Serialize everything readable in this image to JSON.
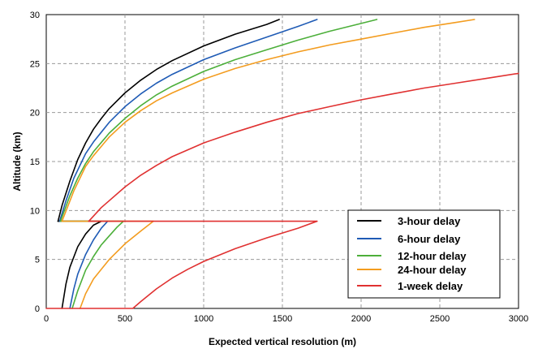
{
  "chart_data": {
    "type": "line",
    "title": "",
    "xlabel": "Expected vertical resolution (m)",
    "ylabel": "Altitude (km)",
    "xlim": [
      0,
      3000
    ],
    "ylim": [
      0,
      30
    ],
    "xticks": [
      0,
      500,
      1000,
      1500,
      2000,
      2500,
      3000
    ],
    "yticks": [
      0,
      5,
      10,
      15,
      20,
      25,
      30
    ],
    "grid": true,
    "legend_position": "bottom-right",
    "series": [
      {
        "name": "3-hour delay",
        "color": "#000000",
        "x": [
          75,
          100,
          150,
          200,
          250,
          300,
          350,
          400,
          500,
          600,
          700,
          800,
          1000,
          1200,
          1400,
          1480
        ],
        "y": [
          8.9,
          10.5,
          13.0,
          15.2,
          16.9,
          18.3,
          19.4,
          20.4,
          22.0,
          23.3,
          24.4,
          25.3,
          26.8,
          28.0,
          29.0,
          29.5
        ],
        "x_lower": [
          100,
          125,
          150,
          200,
          250,
          300,
          350
        ],
        "y_lower": [
          0,
          2.5,
          4.2,
          6.3,
          7.6,
          8.5,
          8.9
        ]
      },
      {
        "name": "6-hour delay",
        "color": "#1f5bb5",
        "x": [
          85,
          125,
          175,
          250,
          300,
          400,
          500,
          600,
          700,
          800,
          1000,
          1200,
          1400,
          1600,
          1720
        ],
        "y": [
          8.9,
          11.0,
          13.3,
          15.8,
          17.0,
          19.0,
          20.6,
          21.9,
          23.0,
          23.9,
          25.4,
          26.6,
          27.7,
          28.8,
          29.5
        ],
        "x_lower": [
          150,
          175,
          200,
          250,
          300,
          350,
          390
        ],
        "y_lower": [
          0,
          2.0,
          3.5,
          5.5,
          7.0,
          8.2,
          8.9
        ]
      },
      {
        "name": "12-hour delay",
        "color": "#4caf3a",
        "x": [
          90,
          150,
          200,
          250,
          300,
          400,
          500,
          600,
          700,
          800,
          1000,
          1200,
          1400,
          1600,
          1800,
          2000,
          2100
        ],
        "y": [
          8.9,
          11.5,
          13.3,
          14.8,
          16.0,
          17.9,
          19.4,
          20.7,
          21.8,
          22.7,
          24.2,
          25.4,
          26.4,
          27.4,
          28.3,
          29.1,
          29.5
        ],
        "x_lower": [
          165,
          200,
          250,
          300,
          350,
          400,
          450,
          490
        ],
        "y_lower": [
          0,
          1.8,
          3.9,
          5.3,
          6.5,
          7.4,
          8.3,
          8.9
        ]
      },
      {
        "name": "24-hour delay",
        "color": "#f39c1f",
        "x": [
          100,
          175,
          250,
          300,
          400,
          500,
          600,
          700,
          800,
          1000,
          1200,
          1400,
          1600,
          1800,
          2000,
          2200,
          2400,
          2600,
          2720
        ],
        "y": [
          8.9,
          12.0,
          14.5,
          15.6,
          17.5,
          19.0,
          20.2,
          21.2,
          22.0,
          23.4,
          24.5,
          25.4,
          26.2,
          26.9,
          27.5,
          28.1,
          28.7,
          29.2,
          29.5
        ],
        "x_lower": [
          215,
          250,
          300,
          400,
          500,
          600,
          680
        ],
        "y_lower": [
          0,
          1.5,
          3.0,
          5.0,
          6.6,
          7.9,
          8.9
        ]
      },
      {
        "name": "1-week delay",
        "color": "#e03131",
        "x": [
          270,
          350,
          500,
          600,
          700,
          800,
          1000,
          1200,
          1400,
          1600,
          1800,
          2000,
          2200,
          2400,
          2600,
          2800,
          3000
        ],
        "y": [
          8.9,
          10.3,
          12.4,
          13.6,
          14.6,
          15.5,
          16.9,
          18.0,
          19.0,
          19.9,
          20.6,
          21.3,
          21.9,
          22.5,
          23.0,
          23.5,
          24.0
        ],
        "x_lower": [
          0,
          550,
          600,
          700,
          800,
          900,
          1000,
          1200,
          1400,
          1600,
          1720
        ],
        "y_lower": [
          0,
          0,
          0.7,
          2.0,
          3.1,
          4.0,
          4.8,
          6.1,
          7.2,
          8.2,
          8.9
        ],
        "x_connector": [
          270,
          1720
        ],
        "y_connector": [
          8.9,
          8.9
        ]
      }
    ]
  }
}
